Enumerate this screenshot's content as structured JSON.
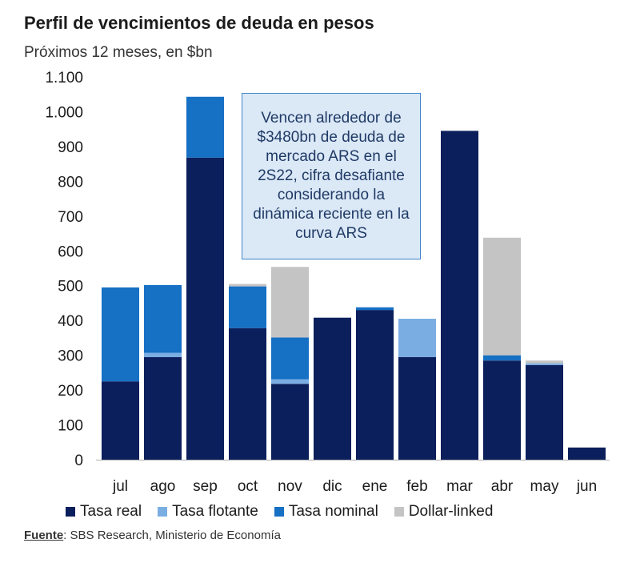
{
  "chart_data": {
    "type": "bar",
    "stacked": true,
    "title": "Perfil de vencimientos de deuda en pesos",
    "subtitle": "Próximos 12 meses, en $bn",
    "categories": [
      "jul",
      "ago",
      "sep",
      "oct",
      "nov",
      "dic",
      "ene",
      "feb",
      "mar",
      "abr",
      "may",
      "jun"
    ],
    "ylim": [
      0,
      1100
    ],
    "yticks": [
      {
        "value": 0,
        "label": "0"
      },
      {
        "value": 100,
        "label": "100"
      },
      {
        "value": 200,
        "label": "200"
      },
      {
        "value": 300,
        "label": "300"
      },
      {
        "value": 400,
        "label": "400"
      },
      {
        "value": 500,
        "label": "500"
      },
      {
        "value": 600,
        "label": "600"
      },
      {
        "value": 700,
        "label": "700"
      },
      {
        "value": 800,
        "label": "800"
      },
      {
        "value": 900,
        "label": "900"
      },
      {
        "value": 1000,
        "label": "1.000"
      },
      {
        "value": 1100,
        "label": "1.100"
      }
    ],
    "series": [
      {
        "name": "Tasa real",
        "color": "#0b1f5c",
        "values": [
          225,
          295,
          868,
          378,
          218,
          408,
          430,
          295,
          945,
          285,
          272,
          35
        ]
      },
      {
        "name": "Tasa flotante",
        "color": "#7aaee3",
        "values": [
          0,
          12,
          0,
          0,
          13,
          0,
          0,
          110,
          0,
          0,
          5,
          0
        ]
      },
      {
        "name": "Tasa nominal",
        "color": "#1670c4",
        "values": [
          270,
          195,
          175,
          120,
          120,
          0,
          8,
          0,
          0,
          15,
          0,
          0
        ]
      },
      {
        "name": "Dollar-linked",
        "color": "#c4c4c4",
        "values": [
          0,
          0,
          0,
          7,
          203,
          0,
          0,
          0,
          0,
          338,
          8,
          0
        ]
      }
    ],
    "annotation": "Vencen alrededor de $3480bn de deuda de mercado ARS en el 2S22, cifra desafiante considerando la dinámica reciente en la curva ARS",
    "legend": [
      "Tasa real",
      "Tasa flotante",
      "Tasa nominal",
      "Dollar-linked"
    ]
  },
  "source": {
    "label": "Fuente",
    "text": ": SBS Research, Ministerio de Economía"
  }
}
